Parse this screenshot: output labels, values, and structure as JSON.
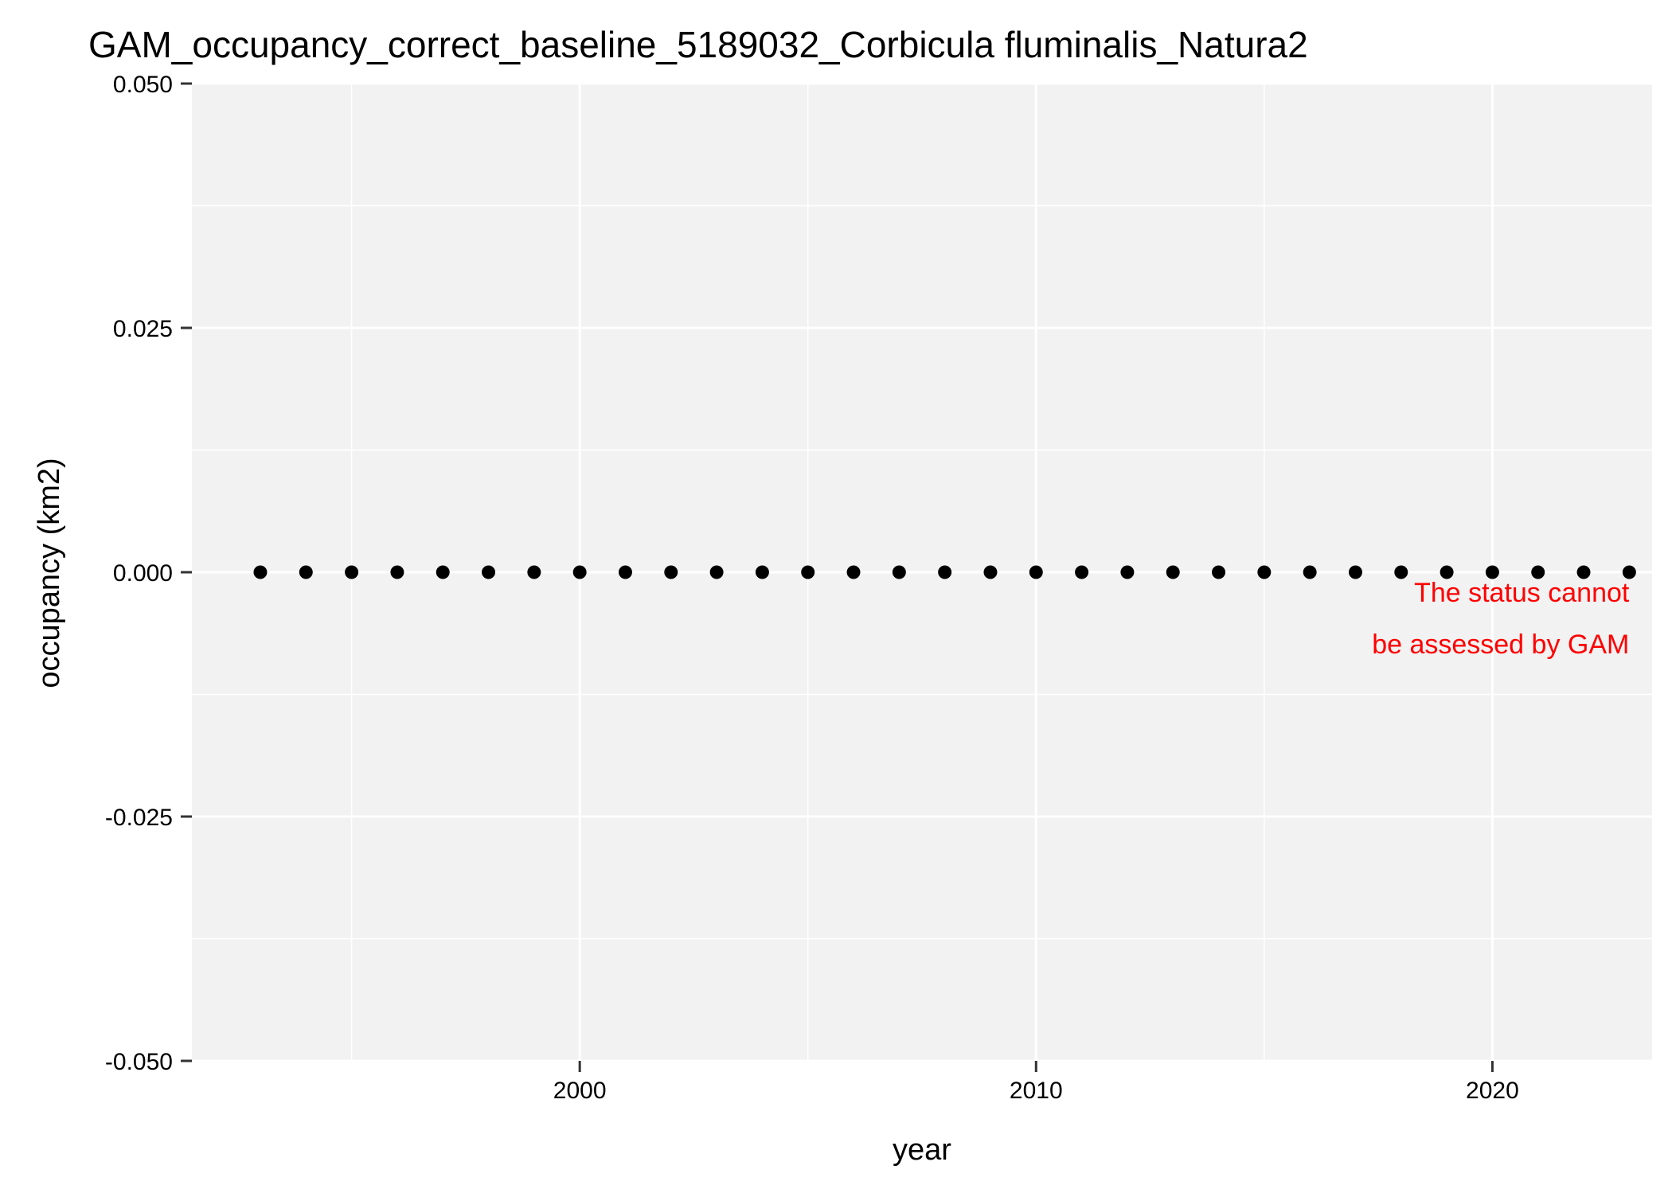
{
  "chart_data": {
    "type": "scatter",
    "title": "GAM_occupancy_correct_baseline_5189032_Corbicula fluminalis_Natura2",
    "xlabel": "year",
    "ylabel": "occupancy (km2)",
    "xlim": [
      1991.5,
      2023.5
    ],
    "ylim": [
      -0.05,
      0.05
    ],
    "x_ticks": [
      2000,
      2010,
      2020
    ],
    "x_tick_labels": [
      "2000",
      "2010",
      "2020"
    ],
    "x_minor_ticks": [
      1995,
      2005,
      2015
    ],
    "y_ticks": [
      -0.05,
      -0.025,
      0,
      0.025,
      0.05
    ],
    "y_tick_labels": [
      "-0.050",
      "-0.025",
      "0.000",
      "0.025",
      "0.050"
    ],
    "y_minor_ticks": [
      -0.0375,
      -0.0125,
      0.0125,
      0.0375
    ],
    "grid": true,
    "panel_background": "#f2f2f2",
    "grid_color": "#ffffff",
    "point_color": "#000000",
    "x": [
      1993,
      1994,
      1995,
      1996,
      1997,
      1998,
      1999,
      2000,
      2001,
      2002,
      2003,
      2004,
      2005,
      2006,
      2007,
      2008,
      2009,
      2010,
      2011,
      2012,
      2013,
      2014,
      2015,
      2016,
      2017,
      2018,
      2019,
      2020,
      2021,
      2022,
      2023
    ],
    "y": [
      0,
      0,
      0,
      0,
      0,
      0,
      0,
      0,
      0,
      0,
      0,
      0,
      0,
      0,
      0,
      0,
      0,
      0,
      0,
      0,
      0,
      0,
      0,
      0,
      0,
      0,
      0,
      0,
      0,
      0,
      0
    ],
    "annotation": {
      "lines": [
        "The status cannot",
        "be assessed by GAM"
      ],
      "color": "#ff0000",
      "anchor_x": 2023,
      "anchor_y": -0.0005
    }
  }
}
